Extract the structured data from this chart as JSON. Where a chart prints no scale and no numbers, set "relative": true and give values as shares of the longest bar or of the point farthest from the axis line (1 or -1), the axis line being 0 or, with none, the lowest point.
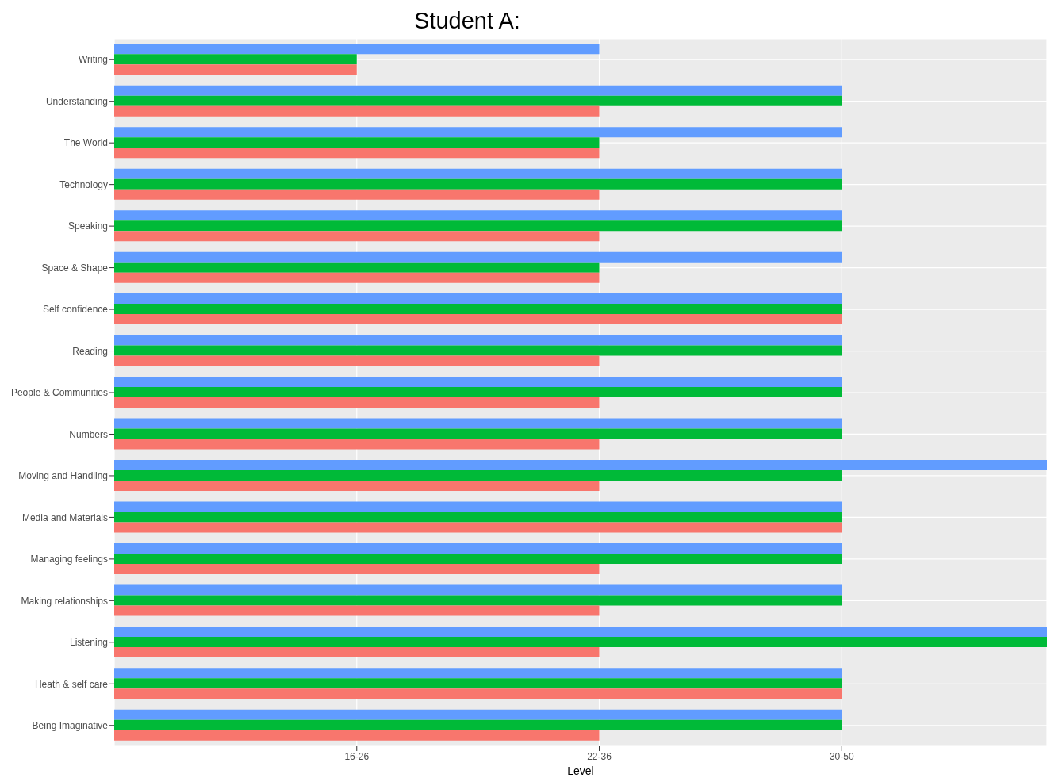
{
  "chart_data": {
    "type": "bar",
    "orientation": "horizontal",
    "relative": true,
    "title": "Student A:",
    "xlabel": "Level",
    "categories": [
      "Writing",
      "Understanding",
      "The World",
      "Technology",
      "Speaking",
      "Space & Shape",
      "Self confidence",
      "Reading",
      "People & Communities",
      "Numbers",
      "Moving and Handling",
      "Media and Materials",
      "Managing feelings",
      "Making relationships",
      "Listening",
      "Heath & self care",
      "Being Imaginative"
    ],
    "series": [
      {
        "color": "#619cff",
        "values": [
          0.52,
          0.78,
          0.78,
          0.78,
          0.78,
          0.78,
          0.78,
          0.78,
          0.78,
          0.78,
          1,
          0.78,
          0.78,
          0.78,
          1,
          0.78,
          0.78
        ]
      },
      {
        "color": "#00ba38",
        "values": [
          0.26,
          0.78,
          0.52,
          0.78,
          0.78,
          0.52,
          0.78,
          0.78,
          0.78,
          0.78,
          0.78,
          0.78,
          0.78,
          0.78,
          1,
          0.78,
          0.78
        ]
      },
      {
        "color": "#f8766d",
        "values": [
          0.26,
          0.52,
          0.52,
          0.52,
          0.52,
          0.52,
          0.78,
          0.52,
          0.52,
          0.52,
          0.52,
          0.78,
          0.52,
          0.52,
          0.52,
          0.78,
          0.52
        ]
      }
    ],
    "annotations": [
      "16-26",
      "22-36",
      "30-50"
    ],
    "grid": true,
    "legend": false
  }
}
